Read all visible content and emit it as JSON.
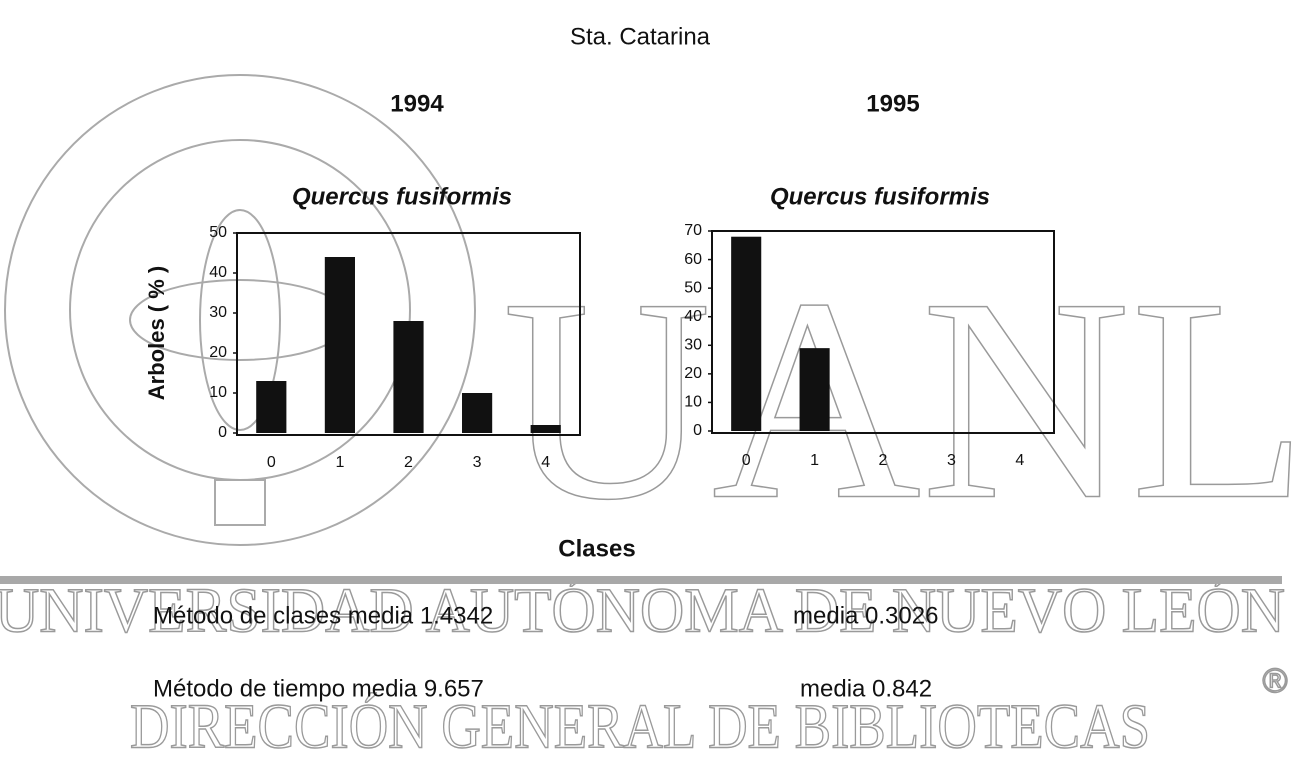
{
  "title": "Sta. Catarina",
  "x_label": "Clases",
  "notes": [
    "Método de clases media 1.4342",
    "media 0.3026",
    "Método de tiempo media 9.657",
    "media 0.842"
  ],
  "watermark": {
    "logo": "UANL",
    "line1": "UNIVERSIDAD AUTÓNOMA DE NUEVO LEÓN",
    "line2": "DIRECCIÓN GENERAL DE BIBLIOTECAS",
    "mark": "®"
  },
  "chart_data": [
    {
      "type": "bar",
      "heading": "1994",
      "title": "Quercus fusiformis",
      "y_label": "Arboles ( % )",
      "categories": [
        "0",
        "1",
        "2",
        "3",
        "4"
      ],
      "values": [
        13,
        44,
        28,
        10,
        2
      ],
      "color": "#111111",
      "ylim": [
        0,
        50
      ],
      "yticks": [
        0,
        10,
        20,
        30,
        40,
        50
      ]
    },
    {
      "type": "bar",
      "heading": "1995",
      "title": "Quercus fusiformis",
      "categories": [
        "0",
        "1",
        "2",
        "3",
        "4"
      ],
      "values": [
        68,
        29,
        0,
        0,
        0
      ],
      "color": "#111111",
      "ylim": [
        0,
        70
      ],
      "yticks": [
        0,
        10,
        20,
        30,
        40,
        50,
        60,
        70
      ]
    }
  ]
}
